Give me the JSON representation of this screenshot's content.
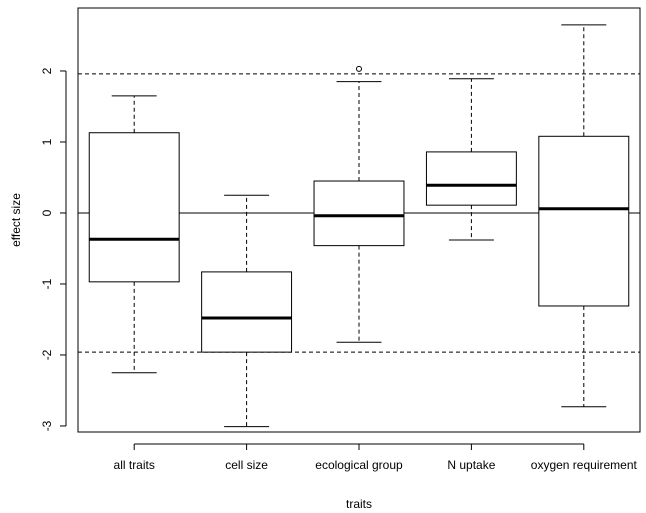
{
  "chart_data": {
    "type": "boxplot",
    "x_label": "traits",
    "y_label": "effect size",
    "categories": [
      "all traits",
      "cell size",
      "ecological group",
      "N uptake",
      "oxygen requirement"
    ],
    "whislo": [
      -2.25,
      -3.01,
      -1.82,
      -0.38,
      -2.73
    ],
    "q1": [
      -0.97,
      -1.96,
      -0.46,
      0.11,
      -1.31
    ],
    "median": [
      -0.37,
      -1.48,
      -0.04,
      0.39,
      0.06
    ],
    "q3": [
      1.13,
      -0.83,
      0.45,
      0.86,
      1.08
    ],
    "whishi": [
      1.65,
      0.25,
      1.85,
      1.89,
      2.65
    ],
    "outliers": [
      [],
      [],
      [
        2.03
      ],
      [],
      []
    ],
    "ylim": [
      -3.085,
      2.887
    ],
    "yticks": [
      -3,
      -2,
      -1,
      0,
      1,
      2
    ],
    "hlines": [
      {
        "value": 1.96,
        "style": "dashed"
      },
      {
        "value": -1.96,
        "style": "dashed"
      },
      {
        "value": 0,
        "style": "solid"
      }
    ],
    "color": "#000000"
  }
}
